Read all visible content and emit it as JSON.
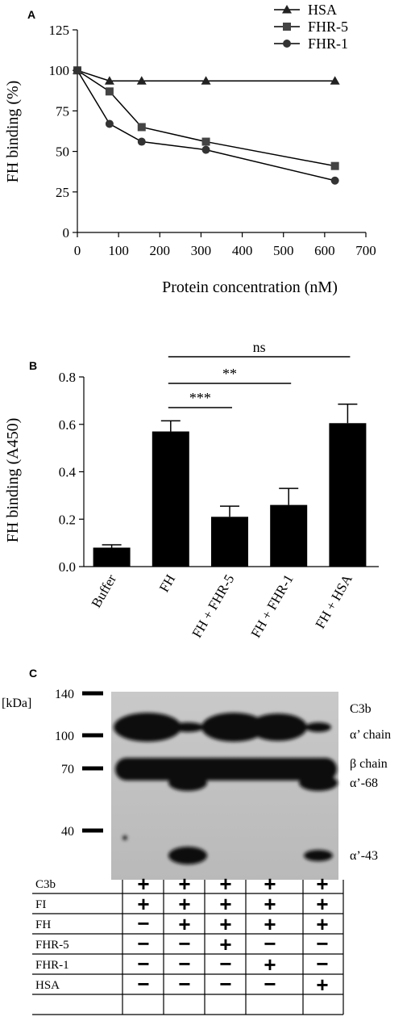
{
  "panels": {
    "a": "A",
    "b": "B",
    "c": "C"
  },
  "chart_data": [
    {
      "type": "line",
      "panel": "A",
      "xlabel": "Protein concentration (nM)",
      "ylabel": "FH binding (%)",
      "xlim": [
        0,
        700
      ],
      "ylim": [
        0,
        125
      ],
      "xticks": [
        0,
        100,
        200,
        300,
        400,
        500,
        600,
        700
      ],
      "yticks": [
        0,
        25,
        50,
        75,
        100,
        125
      ],
      "legend_position": "top-right",
      "series": [
        {
          "name": "HSA",
          "marker": "triangle",
          "x": [
            0,
            78,
            156,
            312,
            625
          ],
          "y": [
            100,
            93.5,
            93.5,
            93.5,
            93.5
          ]
        },
        {
          "name": "FHR-5",
          "marker": "square",
          "x": [
            0,
            78,
            156,
            312,
            625
          ],
          "y": [
            100,
            87,
            65,
            56,
            41
          ]
        },
        {
          "name": "FHR-1",
          "marker": "circle",
          "x": [
            0,
            78,
            156,
            312,
            625
          ],
          "y": [
            100,
            67,
            56,
            51,
            32
          ]
        }
      ]
    },
    {
      "type": "bar",
      "panel": "B",
      "ylabel": "FH binding (A450)",
      "ylim": [
        0,
        0.8
      ],
      "yticks": [
        "0.0",
        "0.2",
        "0.4",
        "0.6",
        "0.8"
      ],
      "categories": [
        "Buffer",
        "FH",
        "FH + FHR-5",
        "FH + FHR-1",
        "FH + HSA"
      ],
      "values": [
        0.08,
        0.57,
        0.21,
        0.26,
        0.605
      ],
      "errors": [
        0.012,
        0.045,
        0.045,
        0.07,
        0.08
      ],
      "significance": [
        {
          "from": 1,
          "to": 2,
          "label": "***"
        },
        {
          "from": 1,
          "to": 3,
          "label": "**"
        },
        {
          "from": 1,
          "to": 4,
          "label": "ns"
        }
      ]
    }
  ],
  "blot": {
    "unit_label": "[kDa]",
    "markers": [
      "140",
      "100",
      "70",
      "40"
    ],
    "band_labels": [
      "C3b",
      "α’ chain",
      "β chain",
      "α’-68",
      "α’-43"
    ],
    "rows": [
      {
        "label": "C3b",
        "signs": [
          "+",
          "+",
          "+",
          "+",
          "+"
        ]
      },
      {
        "label": "FI",
        "signs": [
          "+",
          "+",
          "+",
          "+",
          "+"
        ]
      },
      {
        "label": "FH",
        "signs": [
          "−",
          "+",
          "+",
          "+",
          "+"
        ]
      },
      {
        "label": "FHR-5",
        "signs": [
          "−",
          "−",
          "+",
          "−",
          "−"
        ]
      },
      {
        "label": "FHR-1",
        "signs": [
          "−",
          "−",
          "−",
          "+",
          "−"
        ]
      },
      {
        "label": "HSA",
        "signs": [
          "−",
          "−",
          "−",
          "−",
          "+"
        ]
      }
    ]
  }
}
